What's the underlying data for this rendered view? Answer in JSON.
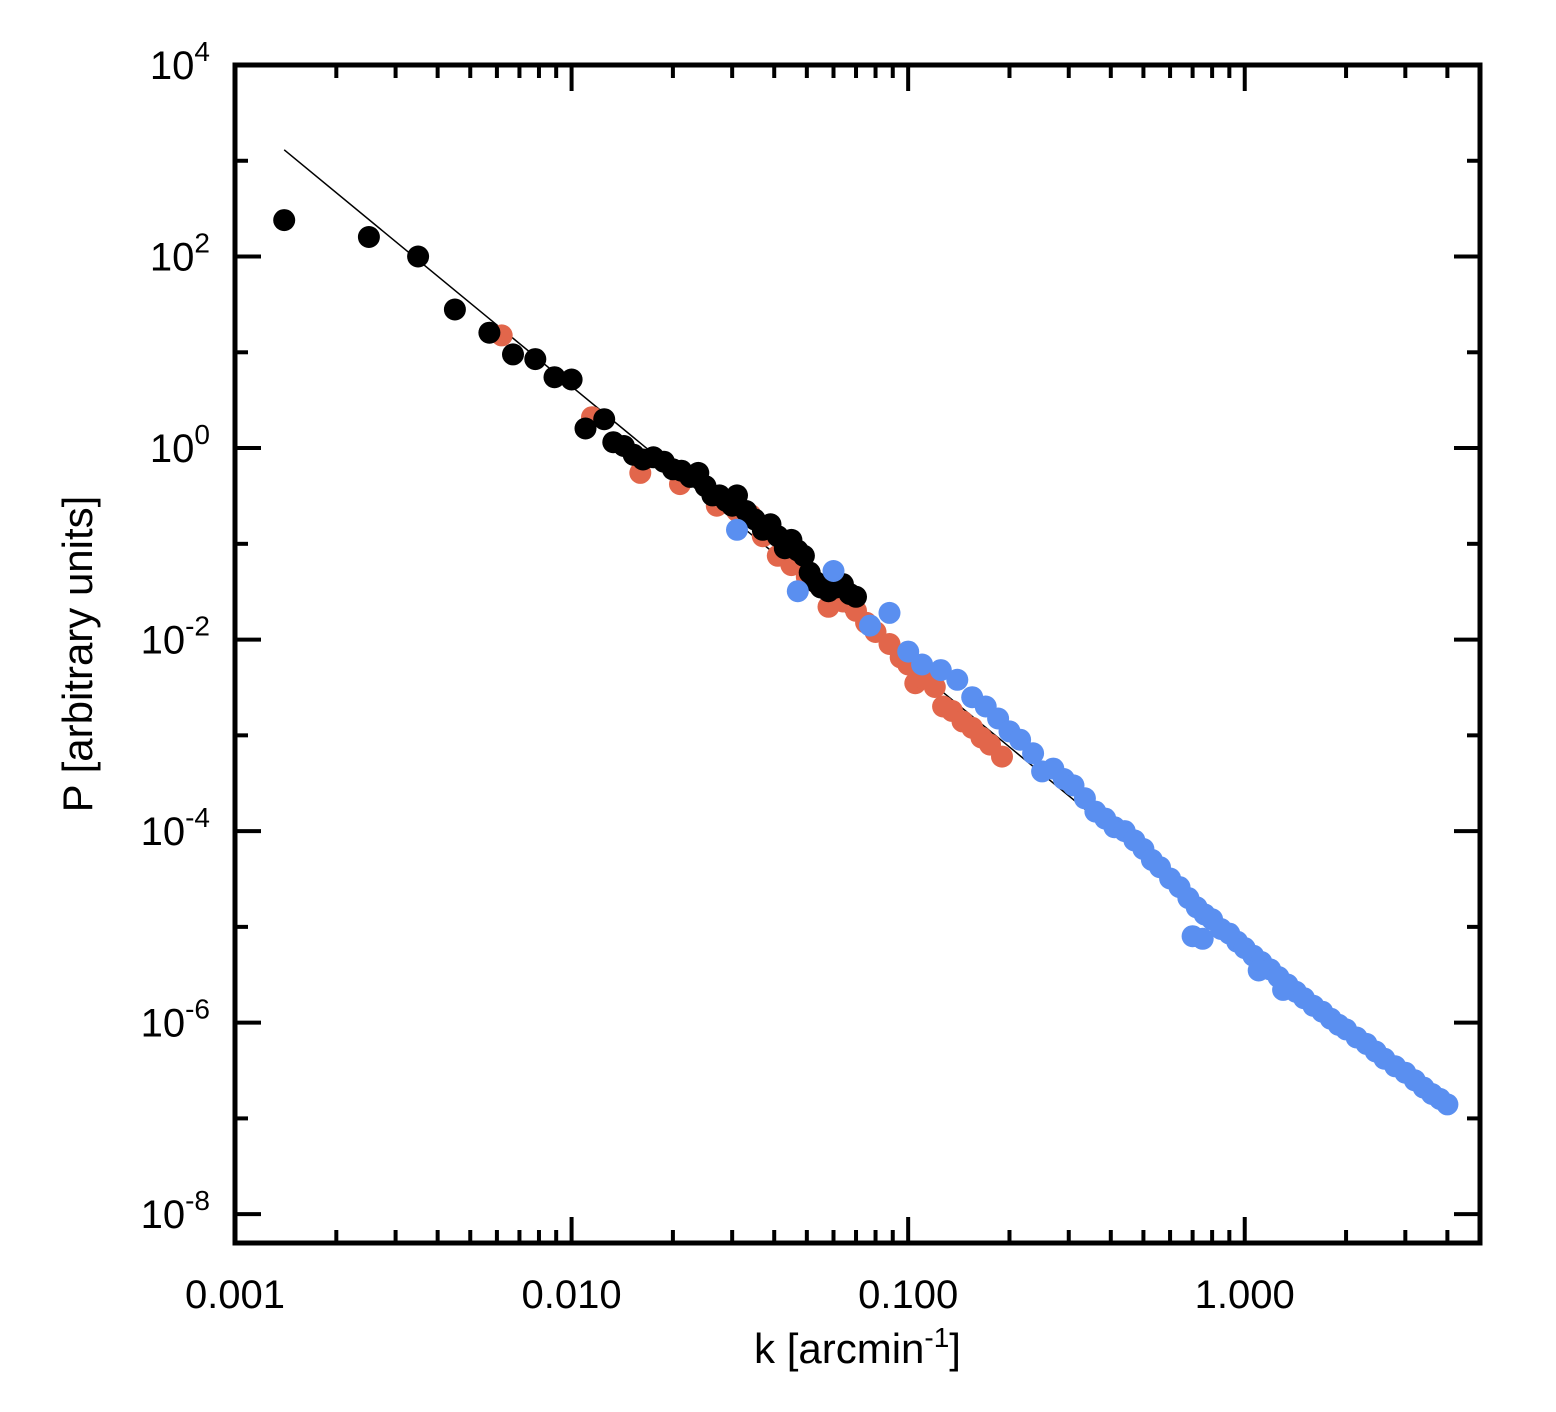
{
  "chart_data": {
    "type": "scatter",
    "title": "",
    "xlabel": {
      "text": "k [arcmin",
      "sup": "-1",
      "suffix": "]"
    },
    "ylabel": "P [arbitrary units]",
    "xscale": "log",
    "yscale": "log",
    "xlim": [
      0.001,
      5.0
    ],
    "ylim": [
      5e-09,
      10000
    ],
    "grid": false,
    "legend": "none",
    "xticks": [
      {
        "value": 0.001,
        "label": "0.001"
      },
      {
        "value": 0.01,
        "label": "0.010"
      },
      {
        "value": 0.1,
        "label": "0.100"
      },
      {
        "value": 1.0,
        "label": "1.000"
      }
    ],
    "yticks": [
      {
        "value": 10000,
        "base": "10",
        "exp": "4"
      },
      {
        "value": 100,
        "base": "10",
        "exp": "2"
      },
      {
        "value": 1,
        "base": "10",
        "exp": "0"
      },
      {
        "value": 0.01,
        "base": "10",
        "exp": "-2"
      },
      {
        "value": 0.0001,
        "base": "10",
        "exp": "-4"
      },
      {
        "value": 1e-06,
        "base": "10",
        "exp": "-6"
      },
      {
        "value": 1e-08,
        "base": "10",
        "exp": "-8"
      }
    ],
    "fit_line": {
      "color": "#000000",
      "points": [
        [
          0.0014,
          1300
        ],
        [
          4.0,
          1.3e-07
        ]
      ]
    },
    "series": [
      {
        "color": "#000000",
        "points": [
          [
            0.0014,
            240
          ],
          [
            0.0025,
            160
          ],
          [
            0.0035,
            100
          ],
          [
            0.0045,
            28
          ],
          [
            0.0057,
            16
          ],
          [
            0.0067,
            9.5
          ],
          [
            0.0078,
            8.5
          ],
          [
            0.0089,
            5.5
          ],
          [
            0.01,
            5.2
          ],
          [
            0.011,
            1.6
          ],
          [
            0.0125,
            2.0
          ],
          [
            0.0133,
            1.15
          ],
          [
            0.0143,
            1.05
          ],
          [
            0.0153,
            0.85
          ],
          [
            0.0163,
            0.76
          ],
          [
            0.0175,
            0.8
          ],
          [
            0.0188,
            0.72
          ],
          [
            0.02,
            0.6
          ],
          [
            0.0212,
            0.58
          ],
          [
            0.0225,
            0.5
          ],
          [
            0.0238,
            0.55
          ],
          [
            0.025,
            0.4
          ],
          [
            0.0262,
            0.32
          ],
          [
            0.0275,
            0.32
          ],
          [
            0.0288,
            0.28
          ],
          [
            0.03,
            0.25
          ],
          [
            0.031,
            0.32
          ],
          [
            0.033,
            0.22
          ],
          [
            0.035,
            0.18
          ],
          [
            0.037,
            0.14
          ],
          [
            0.039,
            0.16
          ],
          [
            0.041,
            0.12
          ],
          [
            0.043,
            0.09
          ],
          [
            0.045,
            0.11
          ],
          [
            0.047,
            0.085
          ],
          [
            0.049,
            0.075
          ],
          [
            0.051,
            0.05
          ],
          [
            0.053,
            0.04
          ],
          [
            0.055,
            0.035
          ],
          [
            0.058,
            0.032
          ],
          [
            0.061,
            0.035
          ],
          [
            0.064,
            0.038
          ],
          [
            0.067,
            0.03
          ],
          [
            0.07,
            0.028
          ]
        ]
      },
      {
        "color": "#e2664b",
        "points": [
          [
            0.0062,
            15
          ],
          [
            0.0115,
            2.1
          ],
          [
            0.016,
            0.55
          ],
          [
            0.021,
            0.42
          ],
          [
            0.027,
            0.25
          ],
          [
            0.031,
            0.22
          ],
          [
            0.034,
            0.2
          ],
          [
            0.037,
            0.12
          ],
          [
            0.041,
            0.075
          ],
          [
            0.045,
            0.06
          ],
          [
            0.05,
            0.045
          ],
          [
            0.054,
            0.038
          ],
          [
            0.058,
            0.022
          ],
          [
            0.064,
            0.025
          ],
          [
            0.07,
            0.02
          ],
          [
            0.075,
            0.015
          ],
          [
            0.08,
            0.012
          ],
          [
            0.088,
            0.009
          ],
          [
            0.095,
            0.0065
          ],
          [
            0.1,
            0.0055
          ],
          [
            0.105,
            0.0035
          ],
          [
            0.11,
            0.004
          ],
          [
            0.12,
            0.0032
          ],
          [
            0.127,
            0.002
          ],
          [
            0.135,
            0.0018
          ],
          [
            0.145,
            0.0014
          ],
          [
            0.155,
            0.0012
          ],
          [
            0.165,
            0.00095
          ],
          [
            0.175,
            0.0008
          ],
          [
            0.19,
            0.0006
          ]
        ]
      },
      {
        "color": "#5a8ff0",
        "points": [
          [
            0.031,
            0.14
          ],
          [
            0.047,
            0.032
          ],
          [
            0.06,
            0.052
          ],
          [
            0.077,
            0.014
          ],
          [
            0.088,
            0.019
          ],
          [
            0.1,
            0.0075
          ],
          [
            0.11,
            0.0055
          ],
          [
            0.125,
            0.0048
          ],
          [
            0.14,
            0.0038
          ],
          [
            0.155,
            0.0025
          ],
          [
            0.17,
            0.002
          ],
          [
            0.185,
            0.0015
          ],
          [
            0.2,
            0.0011
          ],
          [
            0.215,
            0.0009
          ],
          [
            0.235,
            0.00065
          ],
          [
            0.25,
            0.00042
          ],
          [
            0.27,
            0.00045
          ],
          [
            0.29,
            0.00035
          ],
          [
            0.31,
            0.0003
          ],
          [
            0.335,
            0.00022
          ],
          [
            0.36,
            0.00016
          ],
          [
            0.385,
            0.000135
          ],
          [
            0.41,
            0.00011
          ],
          [
            0.44,
            0.0001
          ],
          [
            0.47,
            8e-05
          ],
          [
            0.5,
            6.5e-05
          ],
          [
            0.53,
            5e-05
          ],
          [
            0.56,
            4.2e-05
          ],
          [
            0.6,
            3.2e-05
          ],
          [
            0.64,
            2.6e-05
          ],
          [
            0.68,
            2e-05
          ],
          [
            0.72,
            1.6e-05
          ],
          [
            0.76,
            1.35e-05
          ],
          [
            0.8,
            1.2e-05
          ],
          [
            0.85,
            9.5e-06
          ],
          [
            0.9,
            8.5e-06
          ],
          [
            0.95,
            7e-06
          ],
          [
            1.0,
            6e-06
          ],
          [
            1.06,
            5e-06
          ],
          [
            1.12,
            4.3e-06
          ],
          [
            1.19,
            3.6e-06
          ],
          [
            1.26,
            3e-06
          ],
          [
            1.34,
            2.5e-06
          ],
          [
            1.42,
            2.1e-06
          ],
          [
            1.5,
            1.8e-06
          ],
          [
            1.6,
            1.5e-06
          ],
          [
            1.7,
            1.3e-06
          ],
          [
            1.8,
            1.1e-06
          ],
          [
            1.9,
            9.5e-07
          ],
          [
            2.0,
            8.5e-07
          ],
          [
            2.15,
            7e-07
          ],
          [
            2.3,
            6e-07
          ],
          [
            2.45,
            5e-07
          ],
          [
            2.6,
            4.2e-07
          ],
          [
            2.8,
            3.5e-07
          ],
          [
            3.0,
            3e-07
          ],
          [
            3.2,
            2.5e-07
          ],
          [
            3.4,
            2.1e-07
          ],
          [
            3.6,
            1.8e-07
          ],
          [
            3.8,
            1.6e-07
          ],
          [
            4.0,
            1.4e-07
          ],
          [
            0.7,
            8e-06
          ],
          [
            0.75,
            7.5e-06
          ],
          [
            1.1,
            3.5e-06
          ],
          [
            1.3,
            2.2e-06
          ]
        ]
      }
    ]
  }
}
